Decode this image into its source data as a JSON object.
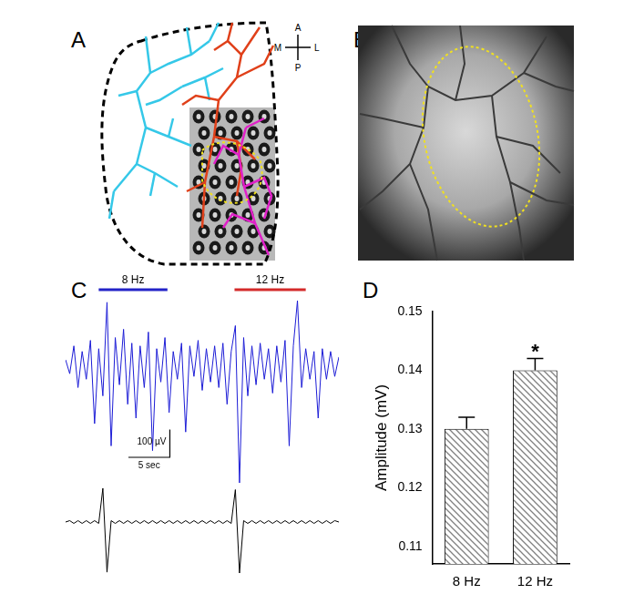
{
  "panel_labels": [
    "A",
    "B",
    "C",
    "D"
  ],
  "compass": {
    "anterior": "A",
    "posterior": "P",
    "medial": "M",
    "lateral": "L"
  },
  "chart_data": [
    {
      "type": "line",
      "x": [
        0,
        0.5,
        1,
        1.5,
        2,
        2.5,
        3,
        3.5,
        4,
        4.5,
        5,
        5.5,
        6,
        6.5,
        7,
        7.5,
        8,
        8.5,
        9,
        9.5,
        10,
        10.5,
        11,
        11.5,
        12,
        12.5,
        13,
        13.5,
        14,
        14.5,
        15,
        15.5,
        16,
        16.5,
        17,
        17.5,
        18,
        18.5,
        19,
        19.5,
        20,
        20.5,
        21,
        21.5,
        22,
        22.5,
        23,
        23.5,
        24,
        24.5,
        25,
        25.5,
        26,
        26.5,
        27,
        27.5,
        28,
        28.5,
        29,
        29.5,
        30,
        30.5,
        31,
        31.5,
        32,
        32.5,
        33
      ],
      "values": [
        10,
        -40,
        60,
        -90,
        40,
        -60,
        80,
        -220,
        50,
        -120,
        217,
        -300,
        90,
        -80,
        120,
        -150,
        70,
        -200,
        60,
        -90,
        110,
        -317,
        50,
        -70,
        90,
        -180,
        40,
        -60,
        70,
        -250,
        60,
        -50,
        80,
        -100,
        50,
        -70,
        60,
        -90,
        70,
        -150,
        40,
        133,
        -433,
        90,
        -120,
        60,
        -80,
        70,
        -60,
        50,
        -110,
        60,
        -70,
        80,
        -300,
        60,
        223,
        -90,
        50,
        -60,
        40,
        -200,
        50,
        -60,
        40,
        -50,
        20
      ],
      "color": "#1c1cd6",
      "xlim": [
        0,
        33
      ],
      "ylim": [
        -433,
        223
      ],
      "tick_labels": false,
      "grid": false,
      "annotations": [
        {
          "text": "8 Hz",
          "x": [
            4.0,
            12.3
          ],
          "color": "#2323c8"
        },
        {
          "text": "12 Hz",
          "x": [
            20.4,
            29.0
          ],
          "color": "#d42a2a"
        }
      ],
      "scale_bar": {
        "x": 5,
        "x_label": "5 sec",
        "y": 100,
        "y_label": "100 µV"
      }
    },
    {
      "type": "line",
      "x": [
        0,
        0.5,
        1,
        1.5,
        2,
        2.5,
        3,
        3.5,
        4,
        4.5,
        5,
        5.5,
        6,
        6.5,
        7,
        7.5,
        8,
        8.5,
        9,
        9.5,
        10,
        10.5,
        11,
        11.5,
        12,
        12.5,
        13,
        13.5,
        14,
        14.5,
        15,
        15.5,
        16,
        16.5,
        17,
        17.5,
        18,
        18.5,
        19,
        19.5,
        20,
        20.5,
        21,
        21.5,
        22,
        22.5,
        23,
        23.5,
        24,
        24.5,
        25,
        25.5,
        26,
        26.5,
        27,
        27.5,
        28,
        28.5,
        29,
        29.5,
        30,
        30.5,
        31,
        31.5,
        32,
        32.5,
        33
      ],
      "values": [
        0,
        5,
        -5,
        5,
        -5,
        5,
        -5,
        5,
        -5,
        123,
        -183,
        5,
        -5,
        5,
        -5,
        5,
        -5,
        5,
        -5,
        5,
        -5,
        5,
        -5,
        5,
        -5,
        5,
        -5,
        5,
        -5,
        5,
        -5,
        5,
        -5,
        5,
        -5,
        5,
        -5,
        5,
        -5,
        5,
        -5,
        118,
        -186,
        5,
        -5,
        5,
        -5,
        5,
        -5,
        5,
        -5,
        5,
        -5,
        5,
        -5,
        5,
        -5,
        5,
        -5,
        5,
        -5,
        5,
        -5,
        5,
        -5,
        5,
        0
      ],
      "color": "#000000",
      "xlim": [
        0,
        33
      ],
      "ylim": [
        -186,
        123
      ],
      "tick_labels": false,
      "grid": false
    },
    {
      "type": "bar",
      "categories": [
        "8 Hz",
        "12 Hz"
      ],
      "values": [
        0.13,
        0.14
      ],
      "errors": [
        0.002,
        0.002
      ],
      "color": "#808080",
      "y_label": "Amplitude (mV)",
      "ylim": [
        0.107,
        0.15
      ],
      "yticks": [
        0.11,
        0.12,
        0.13,
        0.14,
        0.15
      ],
      "grid": false,
      "annotations": [
        {
          "text": "*",
          "category": "12 Hz"
        }
      ]
    }
  ]
}
